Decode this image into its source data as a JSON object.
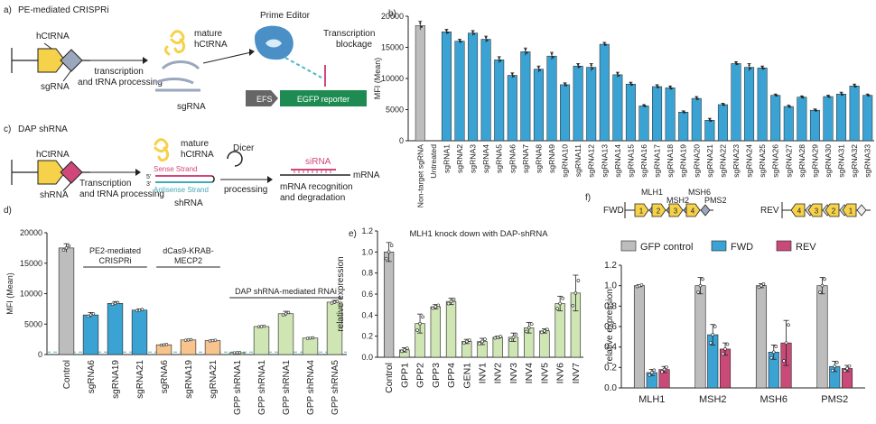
{
  "colors": {
    "blue": "#3ba3d4",
    "grey": "#bdbdbd",
    "orange": "#f6c48c",
    "green": "#cfe6b4",
    "pink": "#c94a78",
    "yellow": "#f6d14a",
    "slate": "#9aa7bd",
    "magenta": "#d0487a",
    "editor": "#4a8fc6",
    "reporter": "#1e8c52",
    "efs": "#666666",
    "dashed": "#4bb7c9",
    "sense": "#d0487a",
    "antisense": "#43a9b5",
    "sirna": "#d0487a"
  },
  "panel_a": {
    "label": "a)",
    "title": "PE-mediated CRISPRi",
    "hctrna": "hCtRNA",
    "sgrna": "sgRNA",
    "process": "transcription\nand tRNA processing",
    "mature": "mature\nhCtRNA",
    "sgrna2": "sgRNA",
    "editor": "Prime Editor",
    "blockage": "Transcription\nblockage",
    "efs": "EFS",
    "reporter": "EGFP reporter"
  },
  "panel_c": {
    "label": "c)",
    "title": "DAP shRNA",
    "hctrna": "hCtRNA",
    "shrna": "shRNA",
    "process": "Transcription\nand tRNA processing",
    "mature": "mature\nhCtRNA",
    "dicer": "Dicer",
    "sense": "Sense Strand",
    "antisense": "Antisense Strand",
    "five": "5'",
    "three": "3'",
    "shrna2": "shRNA",
    "processing": "processing",
    "sirna": "siRNA",
    "mrna": "mRNA",
    "recognition": "mRNA recognition\nand degradation"
  },
  "panel_f_diagram": {
    "fwd": "FWD",
    "rev": "REV",
    "genes": [
      "MLH1",
      "MSH2",
      "MSH6",
      "PMS2"
    ],
    "fwd_numbers": [
      "1",
      "2",
      "3",
      "4"
    ],
    "rev_numbers": [
      "4",
      "3",
      "2",
      "1"
    ]
  },
  "chart_data": [
    {
      "id": "b",
      "label": "b)",
      "type": "bar",
      "ylabel": "MFI (Mean)",
      "ylim": [
        0,
        20000
      ],
      "yticks": [
        0,
        5000,
        10000,
        15000,
        20000
      ],
      "categories": [
        "Non-target sgRNA",
        "Untreated",
        "sgRNA1",
        "sgRNA2",
        "sgRNA3",
        "sgRNA4",
        "sgRNA5",
        "sgRNA6",
        "sgRNA7",
        "sgRNA8",
        "sgRNA9",
        "sgRNA10",
        "sgRNA11",
        "sgRNA12",
        "sgRNA13",
        "sgRNA14",
        "sgRNA15",
        "sgRNA16",
        "sgRNA17",
        "sgRNA18",
        "sgRNA19",
        "sgRNA20",
        "sgRNA21",
        "sgRNA22",
        "sgRNA23",
        "sgRNA24",
        "sgRNA25",
        "sgRNA26",
        "sgRNA27",
        "sgRNA28",
        "sgRNA29",
        "sgRNA30",
        "sgRNA31",
        "sgRNA32",
        "sgRNA33"
      ],
      "values": [
        18500,
        0,
        17500,
        16000,
        17300,
        16300,
        13000,
        10500,
        14300,
        11500,
        13600,
        9000,
        12000,
        11800,
        15500,
        10600,
        9100,
        5600,
        8700,
        8500,
        4600,
        6800,
        3300,
        5800,
        12400,
        11800,
        11700,
        7300,
        5500,
        7000,
        4900,
        7100,
        7500,
        8800,
        7300
      ],
      "errors": [
        700,
        0,
        400,
        300,
        400,
        500,
        500,
        400,
        600,
        500,
        600,
        300,
        400,
        600,
        300,
        400,
        300,
        200,
        300,
        300,
        200,
        300,
        300,
        200,
        300,
        600,
        300,
        200,
        200,
        200,
        200,
        200,
        300,
        300,
        200
      ],
      "bar_colors": [
        "grey",
        "none",
        "blue",
        "blue",
        "blue",
        "blue",
        "blue",
        "blue",
        "blue",
        "blue",
        "blue",
        "blue",
        "blue",
        "blue",
        "blue",
        "blue",
        "blue",
        "blue",
        "blue",
        "blue",
        "blue",
        "blue",
        "blue",
        "blue",
        "blue",
        "blue",
        "blue",
        "blue",
        "blue",
        "blue",
        "blue",
        "blue",
        "blue",
        "blue",
        "blue"
      ]
    },
    {
      "id": "d",
      "label": "d)",
      "type": "bar",
      "ylabel": "MFI (Mean)",
      "ylim": [
        0,
        20000
      ],
      "yticks": [
        0,
        5000,
        10000,
        15000,
        20000
      ],
      "baseline": 400,
      "categories": [
        "Control",
        "sgRNA6",
        "sgRNA19",
        "sgRNA21",
        "sgRNA6",
        "sgRNA19",
        "sgRNA21",
        "GPP shRNA1",
        "GPP shRNA1",
        "GPP shRNA1",
        "GPP shRNA4",
        "GPP shRNA5"
      ],
      "values": [
        17500,
        6500,
        8400,
        7300,
        1600,
        2400,
        2300,
        300,
        4600,
        6700,
        2700,
        8600
      ],
      "errors": [
        700,
        400,
        300,
        200,
        100,
        100,
        100,
        50,
        100,
        400,
        100,
        300
      ],
      "bar_colors": [
        "grey",
        "blue",
        "blue",
        "blue",
        "orange",
        "orange",
        "orange",
        "green",
        "green",
        "green",
        "green",
        "green"
      ],
      "groups": [
        {
          "label": "PE2-mediated\nCRISPRi",
          "start": 1,
          "end": 3
        },
        {
          "label": "dCas9-KRAB-\nMECP2",
          "start": 4,
          "end": 6
        },
        {
          "label": "DAP shRNA-mediated RNAi",
          "start": 7,
          "end": 11
        }
      ]
    },
    {
      "id": "e",
      "label": "e)",
      "type": "bar",
      "title": "MLH1 knock down with DAP-shRNA",
      "ylabel": "relative expression",
      "ylim": [
        0,
        1.2
      ],
      "yticks": [
        0.0,
        0.2,
        0.4,
        0.6,
        0.8,
        1.0,
        1.2
      ],
      "categories": [
        "Control",
        "GPP1",
        "GPP2",
        "GPP3",
        "GPP4",
        "GEN1",
        "INV1",
        "INV2",
        "INV3",
        "INV4",
        "INV5",
        "INV6",
        "INV7"
      ],
      "values": [
        1.0,
        0.07,
        0.32,
        0.48,
        0.53,
        0.15,
        0.15,
        0.19,
        0.19,
        0.28,
        0.25,
        0.51,
        0.61
      ],
      "errors": [
        0.09,
        0.02,
        0.09,
        0.02,
        0.03,
        0.02,
        0.03,
        0.01,
        0.04,
        0.05,
        0.02,
        0.07,
        0.17
      ],
      "bar_colors": [
        "grey",
        "green",
        "green",
        "green",
        "green",
        "green",
        "green",
        "green",
        "green",
        "green",
        "green",
        "green",
        "green"
      ]
    },
    {
      "id": "f",
      "label": "f)",
      "type": "bar",
      "ylabel": "relative expression",
      "ylim": [
        0,
        1.2
      ],
      "yticks": [
        0.0,
        0.2,
        0.4,
        0.6,
        0.8,
        1.0,
        1.2
      ],
      "categories": [
        "MLH1",
        "MSH2",
        "MSH6",
        "PMS2"
      ],
      "legend": [
        "GFP control",
        "FWD",
        "REV"
      ],
      "series": [
        {
          "name": "GFP control",
          "color": "grey",
          "values": [
            1.0,
            1.0,
            1.0,
            1.0
          ],
          "errors": [
            0.01,
            0.08,
            0.02,
            0.08
          ]
        },
        {
          "name": "FWD",
          "color": "blue",
          "values": [
            0.15,
            0.52,
            0.35,
            0.21
          ],
          "errors": [
            0.03,
            0.1,
            0.07,
            0.05
          ]
        },
        {
          "name": "REV",
          "color": "pink",
          "values": [
            0.18,
            0.38,
            0.44,
            0.19
          ],
          "errors": [
            0.03,
            0.06,
            0.22,
            0.03
          ]
        }
      ]
    }
  ]
}
